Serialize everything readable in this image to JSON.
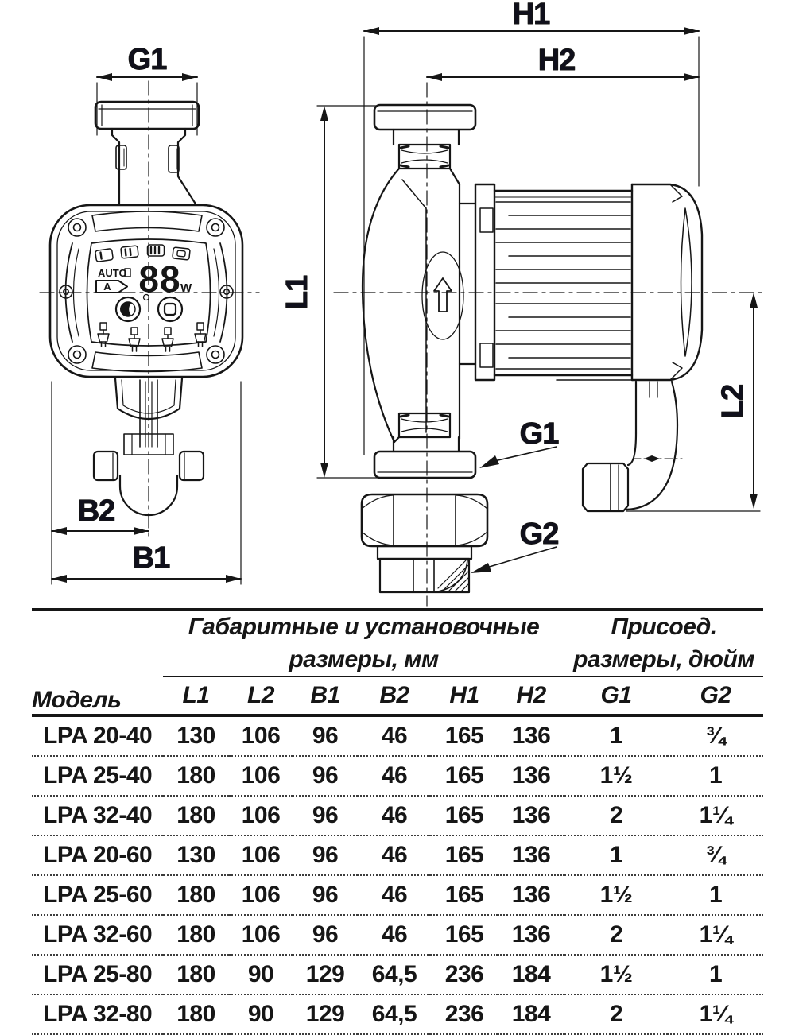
{
  "drawing": {
    "front": {
      "dim_g1": "G1",
      "dim_b2": "B2",
      "dim_b1": "B1",
      "panel": {
        "auto": "AUTO",
        "mode_a": "A",
        "display": "88",
        "watt": "W"
      }
    },
    "side": {
      "dim_h1": "H1",
      "dim_h2": "H2",
      "dim_l1": "L1",
      "dim_l2": "L2",
      "dim_g1": "G1",
      "dim_g2": "G2"
    }
  },
  "table": {
    "col_model": "Модель",
    "group_mm_line1": "Габаритные и установочные",
    "group_mm_line2": "размеры, мм",
    "group_inch_line1": "Присоед.",
    "group_inch_line2": "размеры, дюйм",
    "columns": [
      "L1",
      "L2",
      "B1",
      "B2",
      "H1",
      "H2",
      "G1",
      "G2"
    ],
    "rows": [
      {
        "model": "LPA 20-40",
        "values": [
          "130",
          "106",
          "96",
          "46",
          "165",
          "136",
          "1",
          "¾"
        ]
      },
      {
        "model": "LPA 25-40",
        "values": [
          "180",
          "106",
          "96",
          "46",
          "165",
          "136",
          "1½",
          "1"
        ]
      },
      {
        "model": "LPA 32-40",
        "values": [
          "180",
          "106",
          "96",
          "46",
          "165",
          "136",
          "2",
          "1¼"
        ]
      },
      {
        "model": "LPA 20-60",
        "values": [
          "130",
          "106",
          "96",
          "46",
          "165",
          "136",
          "1",
          "¾"
        ]
      },
      {
        "model": "LPA 25-60",
        "values": [
          "180",
          "106",
          "96",
          "46",
          "165",
          "136",
          "1½",
          "1"
        ]
      },
      {
        "model": "LPA 32-60",
        "values": [
          "180",
          "106",
          "96",
          "46",
          "165",
          "136",
          "2",
          "1¼"
        ]
      },
      {
        "model": "LPA 25-80",
        "values": [
          "180",
          "90",
          "129",
          "64,5",
          "236",
          "184",
          "1½",
          "1"
        ]
      },
      {
        "model": "LPA 32-80",
        "values": [
          "180",
          "90",
          "129",
          "64,5",
          "236",
          "184",
          "2",
          "1¼"
        ]
      }
    ]
  },
  "colors": {
    "line": "#161616",
    "label": "#10101c",
    "background": "#ffffff"
  }
}
